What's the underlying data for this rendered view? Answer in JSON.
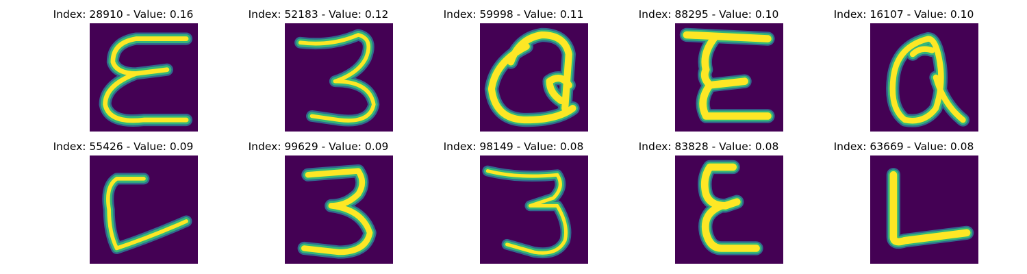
{
  "colors": {
    "background": "#440154",
    "stroke_outer": "#31688e",
    "stroke_mid": "#35b779",
    "stroke_core": "#fde725"
  },
  "panels": [
    {
      "title": "Index: 28910 - Value: 0.16",
      "glyph": "E"
    },
    {
      "title": "Index: 52183 - Value: 0.12",
      "glyph": "3"
    },
    {
      "title": "Index: 59998 - Value: 0.11",
      "glyph": "Q"
    },
    {
      "title": "Index: 88295 - Value: 0.10",
      "glyph": "E"
    },
    {
      "title": "Index: 16107 - Value: 0.10",
      "glyph": "Q"
    },
    {
      "title": "Index: 55426 - Value: 0.09",
      "glyph": "L"
    },
    {
      "title": "Index: 99629 - Value: 0.09",
      "glyph": "3"
    },
    {
      "title": "Index: 98149 - Value: 0.08",
      "glyph": "3"
    },
    {
      "title": "Index: 83828 - Value: 0.08",
      "glyph": "E"
    },
    {
      "title": "Index: 63669 - Value: 0.08",
      "glyph": "L"
    }
  ]
}
